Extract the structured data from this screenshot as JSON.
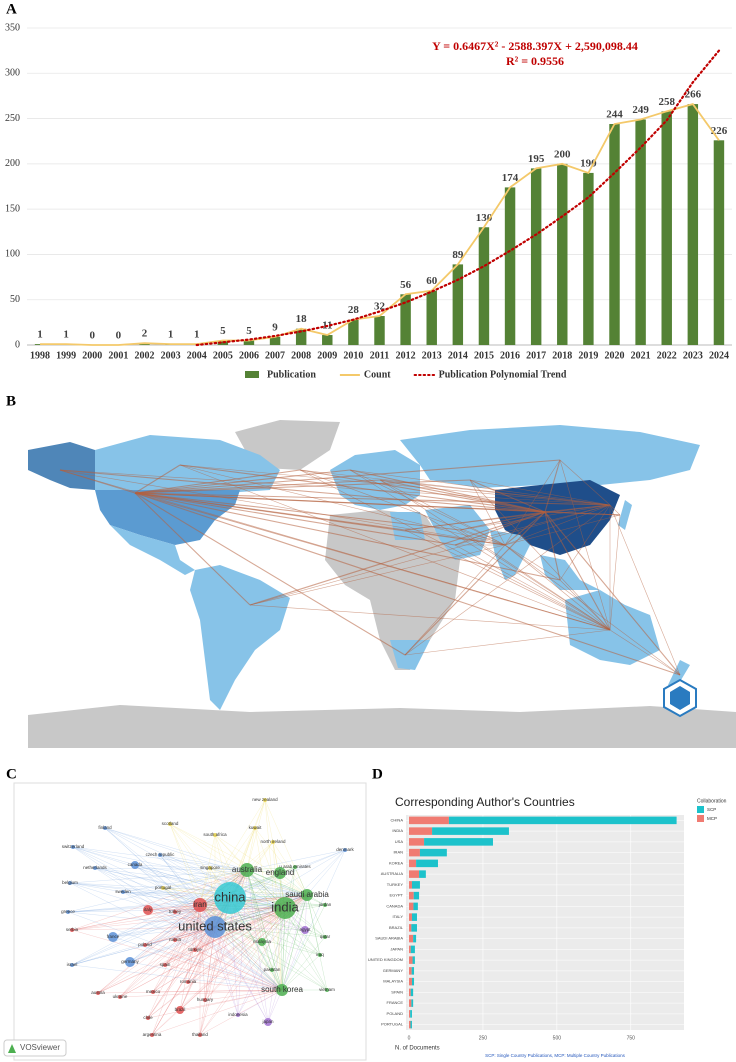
{
  "panels": {
    "a": "A",
    "b": "B",
    "c": "C",
    "d": "D"
  },
  "chart_data": [
    {
      "type": "bar",
      "orientation": "vertical",
      "categories": [
        "1998",
        "1999",
        "2000",
        "2001",
        "2002",
        "2003",
        "2004",
        "2005",
        "2006",
        "2007",
        "2008",
        "2009",
        "2010",
        "2011",
        "2012",
        "2013",
        "2014",
        "2015",
        "2016",
        "2017",
        "2018",
        "2019",
        "2020",
        "2021",
        "2022",
        "2023",
        "2024"
      ],
      "series": [
        {
          "name": "Publication",
          "type": "bar",
          "color": "#548235",
          "values": [
            1,
            1,
            0,
            0,
            2,
            1,
            1,
            5,
            5,
            9,
            18,
            11,
            28,
            32,
            56,
            60,
            89,
            130,
            174,
            195,
            200,
            190,
            244,
            249,
            258,
            266,
            226
          ]
        },
        {
          "name": "Count",
          "type": "line",
          "color": "#f4c96a",
          "values": [
            1,
            1,
            0,
            0,
            2,
            1,
            1,
            5,
            5,
            9,
            18,
            11,
            28,
            32,
            56,
            60,
            89,
            130,
            174,
            195,
            200,
            190,
            244,
            249,
            258,
            266,
            226
          ]
        },
        {
          "name": "Publication  Polynomial Trend",
          "type": "line",
          "dash": "dotted",
          "color": "#c00000",
          "values": [
            null,
            null,
            null,
            null,
            null,
            null,
            0,
            3,
            6,
            10,
            15,
            21,
            28,
            37,
            47,
            59,
            72,
            87,
            104,
            122,
            142,
            163,
            190,
            218,
            248,
            290,
            325
          ]
        }
      ],
      "annotations": [
        "Y = 0.6467X² - 2588.397X + 2,590,098.44",
        "R² = 0.9556"
      ],
      "ylim": [
        0,
        350
      ],
      "yticks": [
        0,
        50,
        100,
        150,
        200,
        250,
        300,
        350
      ],
      "grid": true,
      "legend": "bottom"
    },
    {
      "type": "bar",
      "orientation": "horizontal",
      "stacked": true,
      "title": "Corresponding Author's Countries",
      "categories": [
        "CHINA",
        "INDIA",
        "USA",
        "IRAN",
        "KOREA",
        "AUSTRALIA",
        "TURKEY",
        "EGYPT",
        "CANADA",
        "ITALY",
        "BRAZIL",
        "SAUDI ARABIA",
        "JAPAN",
        "UNITED KINGDOM",
        "GERMANY",
        "MALAYSIA",
        "SPAIN",
        "FRANCE",
        "POLAND",
        "PORTUGAL"
      ],
      "series": [
        {
          "name": "MCP",
          "color": "#f07b72",
          "values": [
            135,
            78,
            51,
            37,
            24,
            34,
            10,
            16,
            15,
            10,
            8,
            14,
            6,
            12,
            9,
            10,
            6,
            8,
            4,
            5
          ]
        },
        {
          "name": "SCP",
          "color": "#1cc2cb",
          "values": [
            770,
            260,
            233,
            91,
            74,
            23,
            27,
            18,
            15,
            17,
            19,
            10,
            14,
            8,
            8,
            7,
            8,
            6,
            6,
            5
          ]
        }
      ],
      "legend_title": "Collaboration",
      "legend_order": [
        "SCP",
        "MCP"
      ],
      "xlabel": "N. of Documents",
      "caption": "SCP: Single Country Publications, MCP: Multiple Country Publications",
      "xlim": [
        0,
        930
      ],
      "xticks": [
        0,
        250,
        500,
        750
      ],
      "grid": true,
      "legend": "right"
    }
  ],
  "network": {
    "watermark": "VOSviewer",
    "nodes": [
      "new zealand",
      "scotland",
      "kuwait",
      "finland",
      "south africa",
      "north ireland",
      "switzerland",
      "czech republic",
      "singapore",
      "u arab emirates",
      "denmark",
      "netherlands",
      "canada",
      "australia",
      "england",
      "belgium",
      "sweden",
      "portugal",
      "saudi arabia",
      "greece",
      "italy",
      "iran",
      "china",
      "india",
      "jordan",
      "turkey",
      "united states",
      "serbia",
      "france",
      "russia",
      "türkiye",
      "malaysia",
      "egypt",
      "qatar",
      "israel",
      "germany",
      "poland",
      "spain",
      "pakistan",
      "iraq",
      "austria",
      "ukraine",
      "mexico",
      "romania",
      "hungary",
      "vietnam",
      "south korea",
      "chile",
      "brazil",
      "indonesia",
      "argentina",
      "thailand",
      "japan"
    ]
  }
}
